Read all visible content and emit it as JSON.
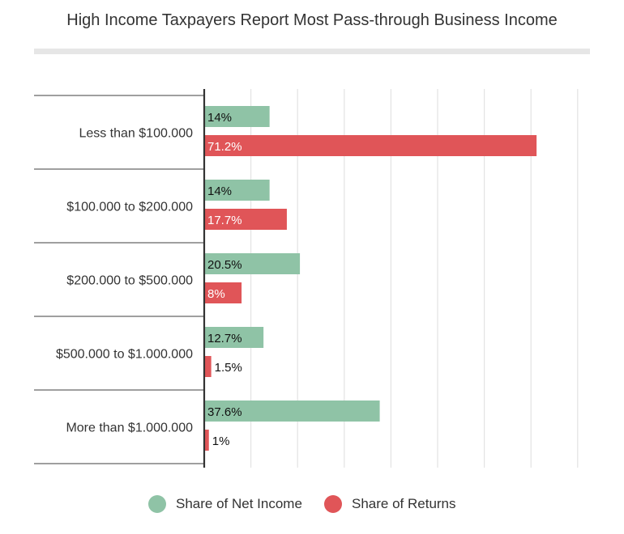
{
  "chart_data": {
    "type": "bar",
    "orientation": "horizontal",
    "title": "High Income Taxpayers Report Most Pass-through Business Income",
    "categories": [
      "Less than $100.000",
      "$100.000 to $200.000",
      "$200.000 to $500.000",
      "$500.000 to $1.000.000",
      "More than $1.000.000"
    ],
    "series": [
      {
        "name": "Share of Net Income",
        "color": "#8fc3a6",
        "values": [
          14,
          14,
          20.5,
          12.7,
          37.6
        ],
        "labels": [
          "14%",
          "14%",
          "20.5%",
          "12.7%",
          "37.6%"
        ]
      },
      {
        "name": "Share of Returns",
        "color": "#e05558",
        "values": [
          71.2,
          17.7,
          8,
          1.5,
          1
        ],
        "labels": [
          "71.2%",
          "17.7%",
          "8%",
          "1.5%",
          "1%"
        ]
      }
    ],
    "xlim": [
      0,
      80
    ],
    "grid": true,
    "legend_position": "bottom"
  }
}
